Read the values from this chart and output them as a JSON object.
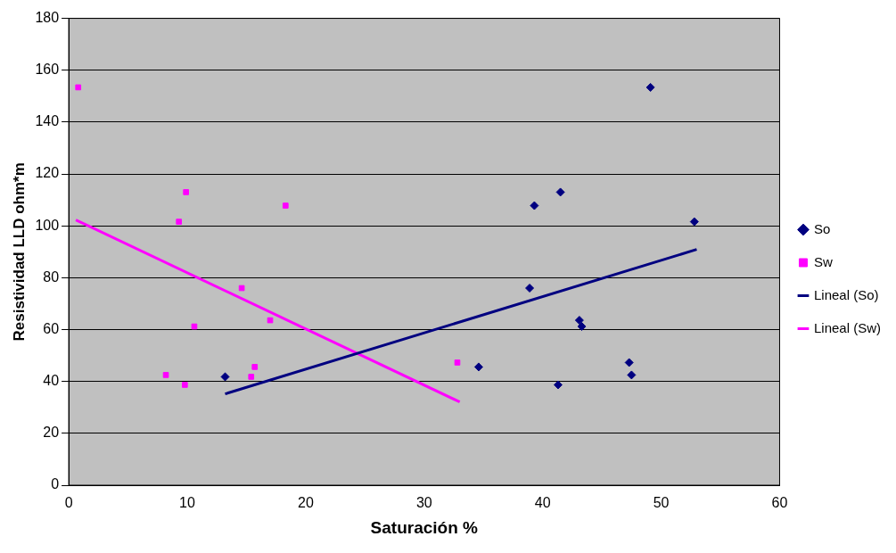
{
  "chart_data": {
    "type": "scatter",
    "xlabel": "Saturación %",
    "ylabel": "Resistividad LLD ohm*m",
    "xlim": [
      0,
      60
    ],
    "xticks": [
      0,
      10,
      20,
      30,
      40,
      50,
      60
    ],
    "ylim": [
      0,
      180
    ],
    "yticks": [
      0,
      20,
      40,
      60,
      80,
      100,
      120,
      140,
      160,
      180
    ],
    "grid": "y",
    "legend": "right",
    "series": [
      {
        "name": "So",
        "type": "scatter",
        "color": "#000080",
        "marker": "diamond",
        "x": [
          13.2,
          34.6,
          38.9,
          39.3,
          41.5,
          41.3,
          43.1,
          43.3,
          47.3,
          47.5,
          49.1,
          52.8
        ],
        "values": [
          41.8,
          45.6,
          76,
          107.8,
          113,
          38.7,
          63.6,
          61.2,
          47.3,
          42.5,
          153.4,
          101.6
        ]
      },
      {
        "name": "Sw",
        "type": "scatter",
        "color": "#ff00ff",
        "marker": "square",
        "x": [
          0.8,
          8.2,
          9.3,
          9.9,
          9.8,
          10.6,
          14.6,
          15.4,
          15.7,
          17.0,
          18.3,
          32.8
        ],
        "values": [
          153.4,
          42.5,
          101.6,
          113,
          38.7,
          61.2,
          76,
          41.8,
          45.6,
          63.6,
          107.8,
          47.3
        ]
      },
      {
        "name": "Lineal (So)",
        "type": "line",
        "color": "#000080",
        "marker": "none",
        "line_style": "solid",
        "x": [
          13.2,
          53
        ],
        "values": [
          35.2,
          90.9
        ]
      },
      {
        "name": "Lineal (Sw)",
        "type": "line",
        "color": "#ff00ff",
        "marker": "none",
        "line_style": "solid",
        "x": [
          0.6,
          33
        ],
        "values": [
          102.3,
          32.1
        ]
      }
    ]
  }
}
